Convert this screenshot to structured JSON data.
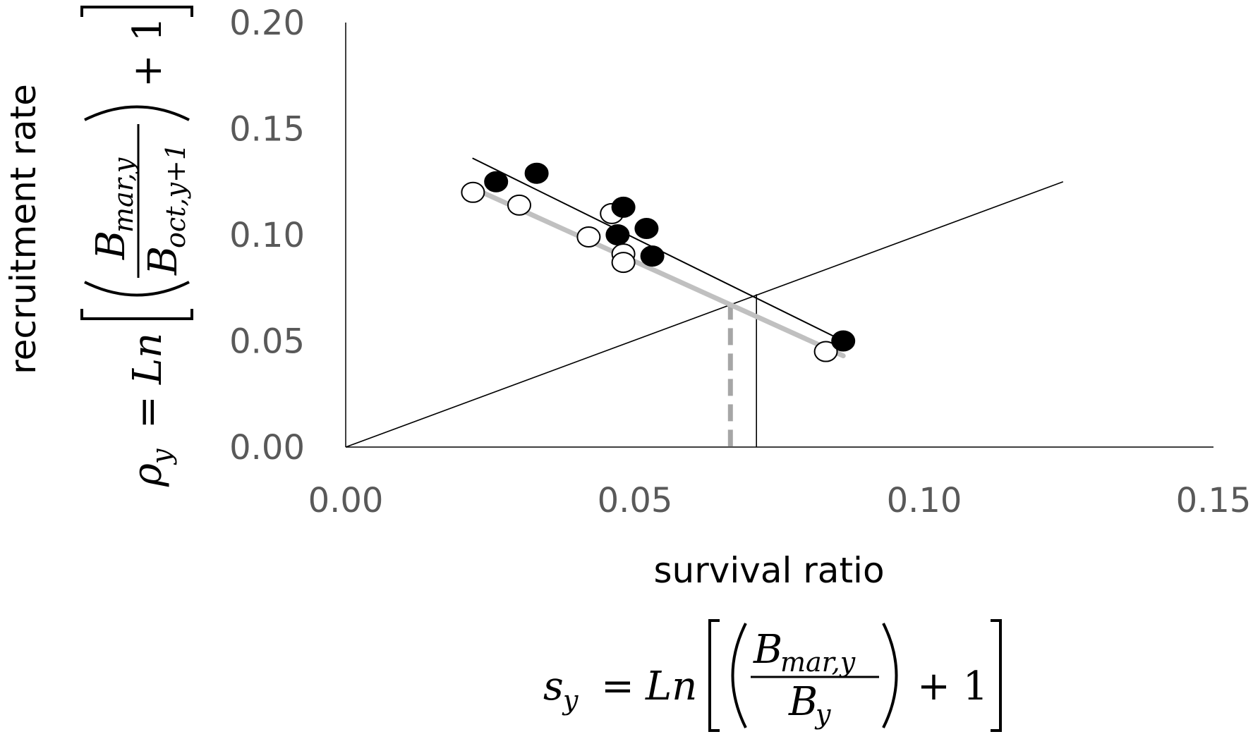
{
  "chart_data": {
    "type": "scatter",
    "xlabel": "survival ratio",
    "ylabel": "recruitment rate",
    "xlim": [
      0,
      0.15
    ],
    "ylim": [
      0,
      0.2
    ],
    "x_ticks": [
      "0.00",
      "0.05",
      "0.10",
      "0.15"
    ],
    "y_ticks": [
      "0.00",
      "0.05",
      "0.10",
      "0.15",
      "0.20"
    ],
    "x_formula": {
      "lhs": "s",
      "lhs_sub": "y",
      "eq": "=",
      "ln": "Ln",
      "num": "B",
      "num_sub": "mar,y",
      "den": "B",
      "den_sub": "y",
      "plus": "+ 1"
    },
    "y_formula": {
      "lhs": "ρ",
      "lhs_sub": "y",
      "eq": "=",
      "ln": "Ln",
      "num": "B",
      "num_sub": "mar,y",
      "den": "B",
      "den_sub": "oct,y+1",
      "plus": "+ 1"
    },
    "series": [
      {
        "marker": "filled",
        "color": "#000000",
        "points": [
          [
            0.026,
            0.125
          ],
          [
            0.033,
            0.129
          ],
          [
            0.048,
            0.113
          ],
          [
            0.047,
            0.1
          ],
          [
            0.052,
            0.103
          ],
          [
            0.053,
            0.09
          ],
          [
            0.086,
            0.05
          ]
        ]
      },
      {
        "marker": "open",
        "color": "#000000",
        "fill": "#ffffff",
        "points": [
          [
            0.022,
            0.12
          ],
          [
            0.03,
            0.114
          ],
          [
            0.042,
            0.099
          ],
          [
            0.046,
            0.11
          ],
          [
            0.048,
            0.091
          ],
          [
            0.048,
            0.087
          ],
          [
            0.083,
            0.045
          ]
        ]
      }
    ],
    "fit_lines": [
      {
        "color": "#000000",
        "width": 2,
        "x": [
          0.022,
          0.086
        ],
        "y": [
          0.136,
          0.05
        ]
      },
      {
        "color": "#c0c0c0",
        "width": 7,
        "x": [
          0.022,
          0.086
        ],
        "y": [
          0.122,
          0.043
        ]
      }
    ],
    "reference_line": {
      "color": "#000000",
      "x": [
        0.0,
        0.124
      ],
      "y": [
        0.0,
        0.125
      ]
    },
    "intersections": [
      {
        "color": "#a6a6a6",
        "style": "dashed",
        "x": 0.0665,
        "y": 0.068
      },
      {
        "color": "#000000",
        "style": "solid",
        "x": 0.071,
        "y": 0.072
      }
    ]
  }
}
